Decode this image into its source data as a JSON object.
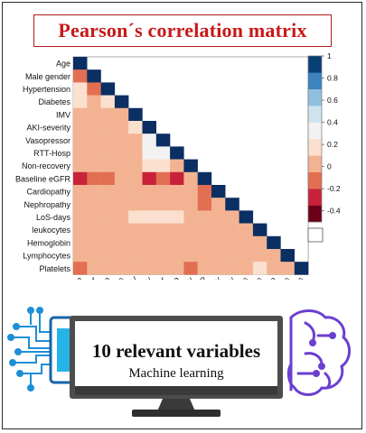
{
  "title": "Pearson´s correlation matrix",
  "chart_data": {
    "type": "heatmap",
    "variables": [
      "Age",
      "Male gender",
      "Hypertension",
      "Diabetes",
      "IMV",
      "AKI-severity",
      "Vasopressor",
      "RTT-Hosp",
      "Non-recovery",
      "Baseline eGFR",
      "Cardiopathy",
      "Nephropathy",
      "LoS-days",
      "leukocytes",
      "Hemoglobin",
      "Lymphocytes",
      "Platelets"
    ],
    "matrix_lower": [
      [
        1
      ],
      [
        -0.15,
        1
      ],
      [
        0.15,
        -0.15,
        1
      ],
      [
        0.12,
        0.08,
        0.15,
        1
      ],
      [
        0.05,
        0.05,
        0.06,
        0.06,
        1
      ],
      [
        0.06,
        0.08,
        0.07,
        0.05,
        0.2,
        1
      ],
      [
        0.05,
        0.06,
        0.07,
        0.04,
        0.09,
        0.25,
        1
      ],
      [
        0.06,
        0.05,
        0.06,
        0.05,
        0.08,
        0.3,
        0.3,
        1
      ],
      [
        0.08,
        0.07,
        0.05,
        0.04,
        0.06,
        0.14,
        0.12,
        0.1,
        1
      ],
      [
        -0.35,
        -0.12,
        -0.18,
        -0.05,
        -0.05,
        -0.22,
        -0.15,
        -0.2,
        -0.03,
        1
      ],
      [
        0.1,
        0.06,
        0.07,
        0.05,
        0.06,
        0.05,
        0.05,
        0.06,
        0.05,
        -0.06,
        1
      ],
      [
        0.08,
        0.05,
        0.1,
        0.05,
        0.05,
        0.05,
        0.06,
        0.05,
        0.05,
        -0.12,
        0.04,
        1
      ],
      [
        0.05,
        0.05,
        0.07,
        0.05,
        0.12,
        0.22,
        0.12,
        0.12,
        0.05,
        -0.05,
        0.05,
        0.05,
        1
      ],
      [
        0.05,
        0.06,
        0.04,
        0.04,
        0.07,
        0.06,
        0.06,
        0.05,
        0.04,
        -0.04,
        0.05,
        0.05,
        0.06,
        1
      ],
      [
        -0.05,
        0.05,
        -0.05,
        -0.04,
        0.05,
        0.04,
        0.05,
        0.06,
        0.04,
        0.02,
        0.04,
        -0.05,
        0.04,
        0.06,
        1
      ],
      [
        -0.05,
        0.05,
        0.04,
        0.05,
        0.05,
        0.04,
        0.05,
        0.06,
        0.04,
        0.05,
        0.04,
        0.05,
        0.05,
        0.05,
        0.03,
        1
      ],
      [
        -0.1,
        0.05,
        0.04,
        0.05,
        0.05,
        0.04,
        0.05,
        0.05,
        -0.1,
        0.05,
        0.04,
        0.05,
        0.04,
        0.2,
        0.04,
        0.04,
        1
      ]
    ],
    "colorbar_ticks": [
      1,
      0.8,
      0.6,
      0.4,
      0.2,
      0,
      -0.2,
      -0.4
    ],
    "colorbar_range": [
      -0.5,
      1
    ],
    "colorbar_colors": [
      "#6b0018",
      "#c8223a",
      "#e26f52",
      "#f3b392",
      "#fbe0cf",
      "#f2f2f2",
      "#cfe3ef",
      "#8fc1de",
      "#3b84bd",
      "#093f75"
    ]
  },
  "banner": {
    "heading": "10 relevant variables",
    "subheading": "Machine learning"
  },
  "colors": {
    "title": "#c81818",
    "title_border": "#b11a1a",
    "chip_blue": "#1e8fd6",
    "brain_purple": "#6b3fd0"
  },
  "icons": {
    "left": "circuit-chip-icon",
    "center": "computer-monitor-icon",
    "right": "brain-circuit-icon"
  }
}
